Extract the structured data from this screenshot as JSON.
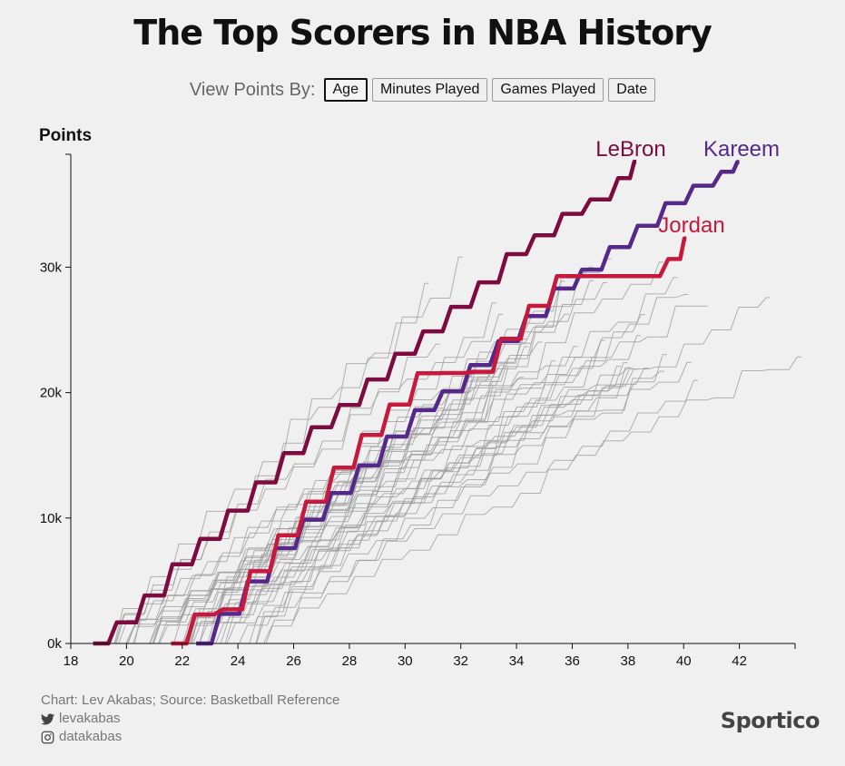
{
  "title": "The Top Scorers in NBA History",
  "controls": {
    "label": "View Points By:",
    "buttons": [
      "Age",
      "Minutes Played",
      "Games Played",
      "Date"
    ],
    "active": "Age"
  },
  "footer": {
    "credit": "Chart: Lev Akabas; Source: Basketball Reference",
    "twitter_handle": "levakabas",
    "instagram_handle": "datakabas",
    "twitter_icon": "twitter-icon",
    "instagram_icon": "instagram-icon"
  },
  "brand": "Sportico",
  "chart_data": {
    "type": "line",
    "title": "",
    "xlabel": "",
    "ylabel": "Points",
    "xlim": [
      18,
      44
    ],
    "ylim": [
      0,
      39000
    ],
    "x_ticks": [
      "18",
      "20",
      "22",
      "24",
      "26",
      "28",
      "30",
      "32",
      "34",
      "36",
      "38",
      "40",
      "42"
    ],
    "y_ticks": [
      "0k",
      "10k",
      "20k",
      "30k"
    ],
    "series": [
      {
        "name": "LeBron",
        "color": "#7d0b3f",
        "label_color": "#7d0b3f",
        "points": [
          [
            18.8,
            0
          ],
          [
            19.8,
            1680
          ],
          [
            20.8,
            3830
          ],
          [
            21.8,
            6310
          ],
          [
            22.8,
            8340
          ],
          [
            23.8,
            10590
          ],
          [
            24.8,
            12840
          ],
          [
            25.8,
            15170
          ],
          [
            26.8,
            17240
          ],
          [
            27.8,
            19010
          ],
          [
            28.8,
            21050
          ],
          [
            29.8,
            23100
          ],
          [
            30.8,
            24880
          ],
          [
            31.8,
            26840
          ],
          [
            32.8,
            28790
          ],
          [
            33.8,
            31040
          ],
          [
            34.8,
            32540
          ],
          [
            35.8,
            34250
          ],
          [
            36.8,
            35400
          ],
          [
            37.8,
            37100
          ],
          [
            38.3,
            38400
          ]
        ]
      },
      {
        "name": "Kareem",
        "color": "#56288a",
        "label_color": "#56288a",
        "points": [
          [
            22.5,
            0
          ],
          [
            23.5,
            2360
          ],
          [
            24.5,
            4950
          ],
          [
            25.5,
            7600
          ],
          [
            26.5,
            9870
          ],
          [
            27.5,
            12000
          ],
          [
            28.5,
            14200
          ],
          [
            29.5,
            16500
          ],
          [
            30.5,
            18600
          ],
          [
            31.5,
            20100
          ],
          [
            32.5,
            22200
          ],
          [
            33.5,
            24100
          ],
          [
            34.5,
            26100
          ],
          [
            35.5,
            28300
          ],
          [
            36.5,
            29800
          ],
          [
            37.5,
            31600
          ],
          [
            38.5,
            33300
          ],
          [
            39.5,
            35100
          ],
          [
            40.5,
            36500
          ],
          [
            41.5,
            37600
          ],
          [
            42.0,
            38387
          ]
        ]
      },
      {
        "name": "Jordan",
        "color": "#c8183c",
        "label_color": "#c8183c",
        "points": [
          [
            21.6,
            0
          ],
          [
            22.6,
            2310
          ],
          [
            23.6,
            2720
          ],
          [
            24.6,
            5760
          ],
          [
            25.6,
            8630
          ],
          [
            26.6,
            11310
          ],
          [
            27.6,
            14020
          ],
          [
            28.6,
            16620
          ],
          [
            29.6,
            19050
          ],
          [
            30.6,
            21540
          ],
          [
            31.6,
            21560
          ],
          [
            32.6,
            21660
          ],
          [
            33.6,
            24300
          ],
          [
            34.6,
            26920
          ],
          [
            35.6,
            29280
          ],
          [
            36.6,
            29280
          ],
          [
            37.6,
            29280
          ],
          [
            38.6,
            29280
          ],
          [
            39.6,
            30650
          ],
          [
            40.1,
            32292
          ]
        ]
      }
    ],
    "background_series_count": 40
  }
}
